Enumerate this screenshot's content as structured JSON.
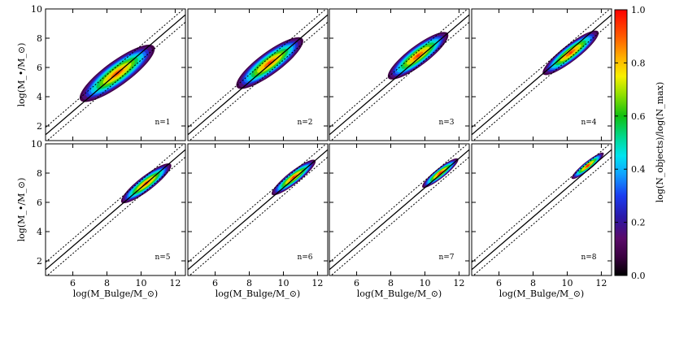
{
  "chart_data": {
    "type": "heatmap",
    "layout": "2x4 small multiples, shared axes",
    "xlabel": "log(M_Bulge/M_⊙)",
    "ylabel": "log(M_•/M_⊙)",
    "xlim": [
      4.4,
      12.6
    ],
    "ylim": [
      1.0,
      10.0
    ],
    "xticks": [
      "6",
      "8",
      "10",
      "12"
    ],
    "yticks": [
      "2",
      "4",
      "6",
      "8",
      "10"
    ],
    "reference_lines": {
      "solid": {
        "intercept": -3.0,
        "slope": 1.0
      },
      "dotted": [
        {
          "intercept": -2.5,
          "slope": 1.0
        },
        {
          "intercept": -3.5,
          "slope": 1.0
        }
      ]
    },
    "colorbar": {
      "label": "log(N_objects)/log(N_max)",
      "range": [
        0.0,
        1.0
      ],
      "ticks": [
        "0.0",
        "0.2",
        "0.4",
        "0.6",
        "0.8",
        "1.0"
      ]
    },
    "panels": [
      {
        "label": "n=1",
        "center": [
          8.6,
          5.6
        ],
        "spread_x": 1.9,
        "spread_y": 1.5,
        "tilt": 0.85
      },
      {
        "label": "n=2",
        "center": [
          9.2,
          6.3
        ],
        "spread_x": 1.7,
        "spread_y": 1.35,
        "tilt": 0.86
      },
      {
        "label": "n=3",
        "center": [
          9.6,
          6.8
        ],
        "spread_x": 1.55,
        "spread_y": 1.2,
        "tilt": 0.88
      },
      {
        "label": "n=4",
        "center": [
          10.2,
          7.0
        ],
        "spread_x": 1.45,
        "spread_y": 1.0,
        "tilt": 0.9
      },
      {
        "label": "n=5",
        "center": [
          10.3,
          7.3
        ],
        "spread_x": 1.3,
        "spread_y": 0.9,
        "tilt": 0.9
      },
      {
        "label": "n=6",
        "center": [
          10.6,
          7.7
        ],
        "spread_x": 1.15,
        "spread_y": 0.75,
        "tilt": 0.92
      },
      {
        "label": "n=7",
        "center": [
          10.9,
          8.0
        ],
        "spread_x": 0.95,
        "spread_y": 0.6,
        "tilt": 0.93
      },
      {
        "label": "n=8",
        "center": [
          11.2,
          8.5
        ],
        "spread_x": 0.85,
        "spread_y": 0.5,
        "tilt": 0.94
      }
    ]
  },
  "colors": {
    "background": "#ffffff",
    "frame": "#000000"
  }
}
